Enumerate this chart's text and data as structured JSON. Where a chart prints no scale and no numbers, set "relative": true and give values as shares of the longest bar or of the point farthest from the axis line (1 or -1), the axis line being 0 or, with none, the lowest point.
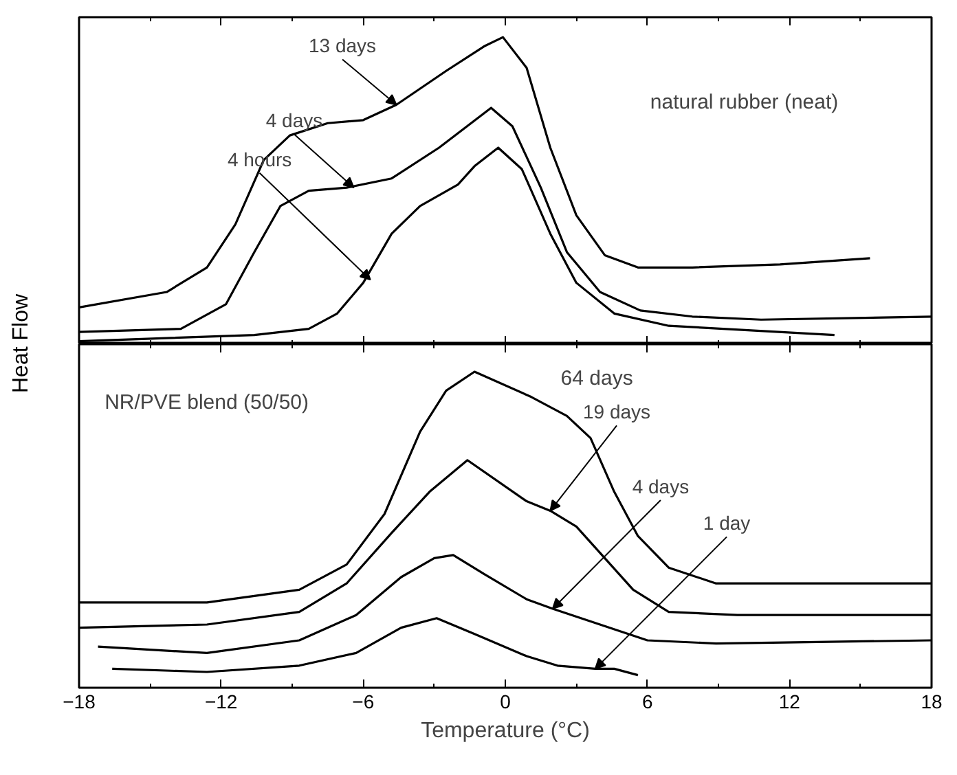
{
  "chart_data": [
    {
      "type": "line",
      "relative": true,
      "ylabel": "Heat Flow",
      "xlim": [
        -18,
        18
      ],
      "xticks": [
        -18,
        -12,
        -6,
        0,
        6,
        12,
        18
      ],
      "tick_labels": false,
      "line_style": "solid",
      "marker": "none",
      "annotations": [
        "natural rubber (neat)",
        {
          "text": "13 days",
          "x": -4.6,
          "y": 0.78
        },
        {
          "text": "4 days",
          "x": -6.4,
          "y": 0.51
        },
        {
          "text": "4 hours",
          "x": -5.7,
          "y": 0.21
        }
      ],
      "series": [
        {
          "color": "#000000",
          "x": [
            -18,
            -14.3,
            -12.6,
            -11.4,
            -10.2,
            -9.1,
            -7.5,
            -6.0,
            -4.6,
            -2.5,
            -0.9,
            -0.1,
            0.9,
            1.9,
            3.0,
            4.2,
            5.6,
            7.9,
            11.6,
            15.4
          ],
          "values": [
            0.12,
            0.17,
            0.25,
            0.39,
            0.6,
            0.68,
            0.72,
            0.73,
            0.78,
            0.89,
            0.97,
            1.0,
            0.9,
            0.64,
            0.42,
            0.29,
            0.25,
            0.25,
            0.26,
            0.28
          ]
        },
        {
          "color": "#000000",
          "x": [
            -18,
            -13.7,
            -11.8,
            -10.6,
            -9.5,
            -8.3,
            -6.7,
            -4.8,
            -2.8,
            -0.6,
            0.3,
            1.5,
            2.6,
            4.0,
            5.7,
            7.9,
            10.8,
            18
          ],
          "values": [
            0.04,
            0.05,
            0.13,
            0.3,
            0.45,
            0.5,
            0.51,
            0.54,
            0.64,
            0.77,
            0.71,
            0.51,
            0.3,
            0.17,
            0.11,
            0.09,
            0.08,
            0.09
          ]
        },
        {
          "color": "#000000",
          "x": [
            -18,
            -10.6,
            -8.3,
            -7.1,
            -6.0,
            -4.8,
            -3.6,
            -2.0,
            -1.3,
            -0.3,
            0.7,
            1.9,
            3.0,
            4.6,
            6.9,
            13.9
          ],
          "values": [
            0.01,
            0.03,
            0.05,
            0.1,
            0.2,
            0.36,
            0.45,
            0.52,
            0.58,
            0.64,
            0.57,
            0.36,
            0.2,
            0.1,
            0.06,
            0.03
          ]
        }
      ]
    },
    {
      "type": "line",
      "relative": true,
      "xlabel": "Temperature (°C)",
      "xlim": [
        -18,
        18
      ],
      "xticks": [
        -18,
        -12,
        -6,
        0,
        6,
        12,
        18
      ],
      "tick_labels": "x",
      "line_style": "solid",
      "marker": "none",
      "annotations": [
        "NR/PVE blend (50/50)",
        "64 days",
        {
          "text": "19 days",
          "x": 1.9,
          "y": 0.56
        },
        {
          "text": "4 days",
          "x": 2.0,
          "y": 0.25
        },
        {
          "text": "1 day",
          "x": 3.8,
          "y": 0.06
        }
      ],
      "series": [
        {
          "color": "#000000",
          "x": [
            -18,
            -12.6,
            -8.7,
            -6.7,
            -5.1,
            -3.6,
            -2.5,
            -1.3,
            1.1,
            2.6,
            3.6,
            4.6,
            5.6,
            6.9,
            8.9,
            18
          ],
          "values": [
            0.27,
            0.27,
            0.31,
            0.39,
            0.55,
            0.81,
            0.94,
            1.0,
            0.92,
            0.86,
            0.79,
            0.62,
            0.48,
            0.38,
            0.33,
            0.33
          ]
        },
        {
          "color": "#000000",
          "x": [
            -18,
            -12.6,
            -8.7,
            -6.7,
            -4.8,
            -3.2,
            -1.6,
            0.9,
            1.9,
            3.0,
            4.2,
            5.4,
            6.9,
            9.8,
            18
          ],
          "values": [
            0.19,
            0.2,
            0.24,
            0.33,
            0.49,
            0.62,
            0.72,
            0.59,
            0.56,
            0.51,
            0.41,
            0.31,
            0.24,
            0.23,
            0.23
          ]
        },
        {
          "color": "#000000",
          "x": [
            -17.2,
            -12.6,
            -8.7,
            -6.3,
            -4.4,
            -3.0,
            -2.2,
            -0.9,
            0.9,
            2.0,
            4.0,
            6.0,
            8.9,
            18
          ],
          "values": [
            0.13,
            0.11,
            0.15,
            0.23,
            0.35,
            0.41,
            0.42,
            0.36,
            0.28,
            0.25,
            0.2,
            0.15,
            0.14,
            0.15
          ]
        },
        {
          "color": "#000000",
          "x": [
            -16.6,
            -12.6,
            -8.7,
            -6.3,
            -4.4,
            -2.9,
            -1.3,
            0.9,
            2.2,
            3.8,
            4.6,
            5.6
          ],
          "values": [
            0.06,
            0.05,
            0.07,
            0.11,
            0.19,
            0.22,
            0.17,
            0.1,
            0.07,
            0.06,
            0.06,
            0.04
          ]
        }
      ]
    }
  ]
}
